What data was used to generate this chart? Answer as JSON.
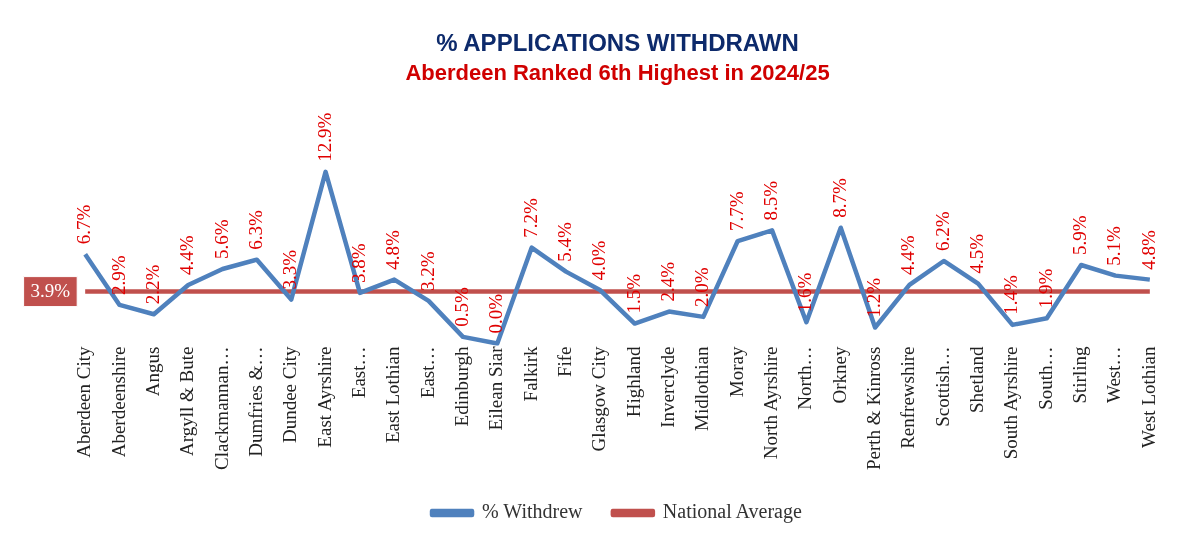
{
  "chart_data": {
    "type": "line",
    "title": "% APPLICATIONS WITHDRAWN",
    "subtitle": "Aberdeen Ranked 6th Highest in 2024/25",
    "categories": [
      "Aberdeen City",
      "Aberdeenshire",
      "Angus",
      "Argyll & Bute",
      "Clackmannan…",
      "Dumfries &…",
      "Dundee City",
      "East Ayrshire",
      "East…",
      "East Lothian",
      "East…",
      "Edinburgh",
      "Eilean Siar",
      "Falkirk",
      "Fife",
      "Glasgow City",
      "Highland",
      "Inverclyde",
      "Midlothian",
      "Moray",
      "North Ayrshire",
      "North…",
      "Orkney",
      "Perth & Kinross",
      "Renfrewshire",
      "Scottish…",
      "Shetland",
      "South Ayrshire",
      "South…",
      "Stirling",
      "West…",
      "West Lothian"
    ],
    "series": [
      {
        "name": "% Withdrew",
        "color": "#4f81bd",
        "values": [
          6.7,
          2.9,
          2.2,
          4.4,
          5.6,
          6.3,
          3.3,
          12.9,
          3.8,
          4.8,
          3.2,
          0.5,
          0.0,
          7.2,
          5.4,
          4.0,
          1.5,
          2.4,
          2.0,
          7.7,
          8.5,
          1.6,
          8.7,
          1.2,
          4.4,
          6.2,
          4.5,
          1.4,
          1.9,
          5.9,
          5.1,
          4.8
        ],
        "value_labels": [
          "6.7%",
          "2.9%",
          "2.2%",
          "4.4%",
          "5.6%",
          "6.3%",
          "3.3%",
          "12.9%",
          "3.8%",
          "4.8%",
          "3.2%",
          "0.5%",
          "0.0%",
          "7.2%",
          "5.4%",
          "4.0%",
          "1.5%",
          "2.4%",
          "2.0%",
          "7.7%",
          "8.5%",
          "1.6%",
          "8.7%",
          "1.2%",
          "4.4%",
          "6.2%",
          "4.5%",
          "1.4%",
          "1.9%",
          "5.9%",
          "5.1%",
          "4.8%"
        ]
      },
      {
        "name": "National Average",
        "color": "#c0504d",
        "values": [
          3.9,
          3.9,
          3.9,
          3.9,
          3.9,
          3.9,
          3.9,
          3.9,
          3.9,
          3.9,
          3.9,
          3.9,
          3.9,
          3.9,
          3.9,
          3.9,
          3.9,
          3.9,
          3.9,
          3.9,
          3.9,
          3.9,
          3.9,
          3.9,
          3.9,
          3.9,
          3.9,
          3.9,
          3.9,
          3.9,
          3.9,
          3.9
        ],
        "value_labels": [
          "3.9%",
          null,
          null,
          null,
          null,
          null,
          null,
          null,
          null,
          null,
          null,
          null,
          null,
          null,
          null,
          null,
          null,
          null,
          null,
          null,
          null,
          null,
          null,
          null,
          null,
          null,
          null,
          null,
          null,
          null,
          null,
          null
        ]
      }
    ],
    "legend": "bottom",
    "grid": false,
    "marker": "none"
  }
}
